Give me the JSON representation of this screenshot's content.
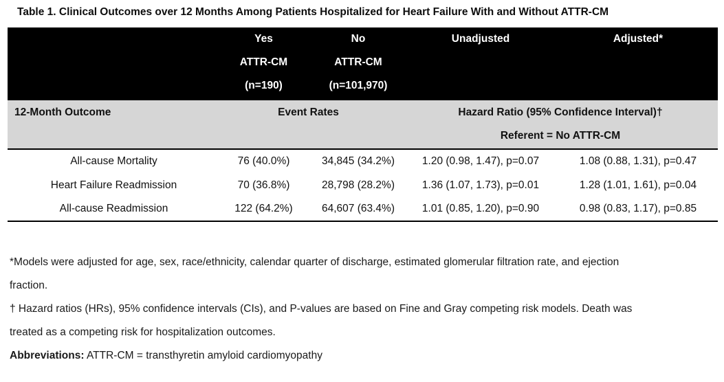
{
  "title": "Table 1. Clinical Outcomes over 12 Months Among Patients Hospitalized for Heart Failure With and Without ATTR-CM",
  "colors": {
    "header_bg": "#000000",
    "header_text": "#ffffff",
    "subheader_bg": "#d6d6d6",
    "border": "#000000",
    "body_text": "#111111"
  },
  "table": {
    "header": {
      "yes_col": [
        "Yes",
        "ATTR-CM",
        "(n=190)"
      ],
      "no_col": [
        "No",
        "ATTR-CM",
        "(n=101,970)"
      ],
      "unadjusted": "Unadjusted",
      "adjusted": "Adjusted*"
    },
    "subheader": {
      "outcome": "12-Month Outcome",
      "event_rates": "Event Rates",
      "hazard_ratio": "Hazard Ratio (95% Confidence Interval)†",
      "referent": "Referent = No ATTR-CM"
    },
    "rows": [
      {
        "outcome": "All-cause Mortality",
        "yes_rate": "76 (40.0%)",
        "no_rate": "34,845 (34.2%)",
        "unadjusted": "1.20 (0.98, 1.47), p=0.07",
        "adjusted": "1.08 (0.88, 1.31), p=0.47"
      },
      {
        "outcome": "Heart Failure Readmission",
        "yes_rate": "70 (36.8%)",
        "no_rate": "28,798 (28.2%)",
        "unadjusted": "1.36 (1.07, 1.73), p=0.01",
        "adjusted": "1.28 (1.01, 1.61), p=0.04"
      },
      {
        "outcome": "All-cause Readmission",
        "yes_rate": "122 (64.2%)",
        "no_rate": "64,607 (63.4%)",
        "unadjusted": "1.01 (0.85, 1.20), p=0.90",
        "adjusted": "0.98 (0.83, 1.17), p=0.85"
      }
    ]
  },
  "footnotes": {
    "models": {
      "lines": [
        "*Models were adjusted for age, sex, race/ethnicity, calendar quarter of discharge, estimated glomerular filtration rate, and ejection",
        "fraction."
      ]
    },
    "hazard": {
      "lines": [
        "† Hazard ratios (HRs), 95% confidence intervals (CIs), and P-values are based on Fine and Gray competing risk models. Death was",
        "treated as a competing risk for hospitalization outcomes."
      ]
    },
    "abbreviations": {
      "label": "Abbreviations:",
      "text": " ATTR-CM = transthyretin amyloid cardiomyopathy"
    }
  }
}
